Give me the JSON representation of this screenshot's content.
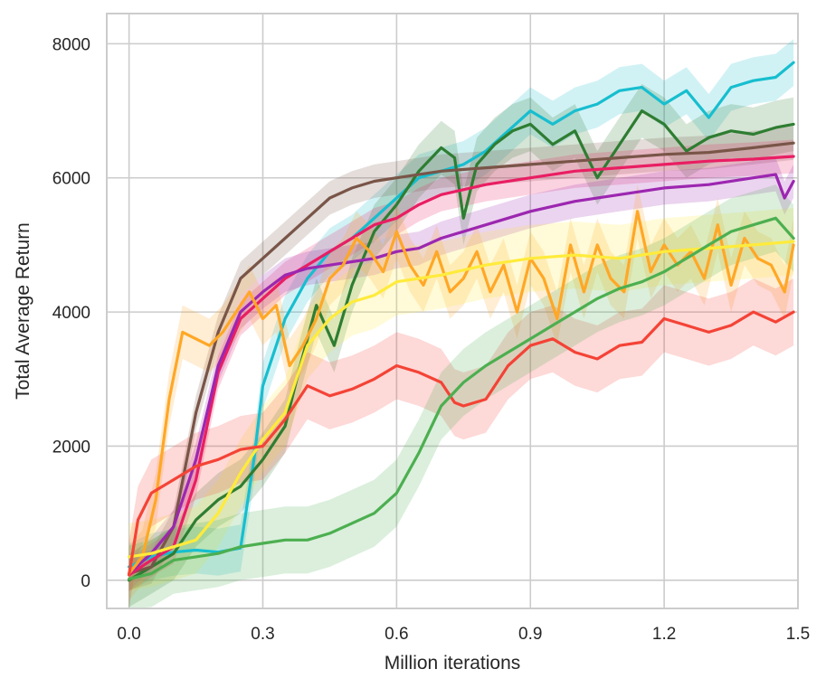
{
  "chart_data": {
    "type": "line",
    "title": "",
    "xlabel": "Million iterations",
    "ylabel": "Total Average Return",
    "xlim": [
      -0.05,
      1.5
    ],
    "ylim": [
      -420,
      8450
    ],
    "x_ticks": [
      0.0,
      0.3,
      0.6,
      0.9,
      1.2,
      1.5
    ],
    "x_tick_labels": [
      "0.0",
      "0.3",
      "0.6",
      "0.9",
      "1.2",
      "1.5"
    ],
    "y_ticks": [
      0,
      2000,
      4000,
      6000,
      8000
    ],
    "y_tick_labels": [
      "0",
      "2000",
      "4000",
      "6000",
      "8000"
    ],
    "grid": true,
    "legend": "none",
    "series": [
      {
        "name": "cyan",
        "color": "#17becf",
        "band": 350,
        "x": [
          0.0,
          0.05,
          0.1,
          0.15,
          0.2,
          0.25,
          0.28,
          0.3,
          0.35,
          0.4,
          0.45,
          0.5,
          0.55,
          0.6,
          0.65,
          0.7,
          0.75,
          0.8,
          0.85,
          0.9,
          0.95,
          1.0,
          1.05,
          1.1,
          1.15,
          1.2,
          1.25,
          1.3,
          1.35,
          1.4,
          1.45,
          1.49
        ],
        "values": [
          200,
          350,
          420,
          450,
          420,
          480,
          1800,
          2900,
          3900,
          4500,
          4900,
          5100,
          5400,
          5700,
          6000,
          6100,
          6200,
          6400,
          6700,
          7000,
          6800,
          7000,
          7100,
          7300,
          7350,
          7100,
          7300,
          6900,
          7350,
          7450,
          7500,
          7720
        ]
      },
      {
        "name": "darkgreen",
        "color": "#2e7d32",
        "band": 400,
        "x": [
          0.0,
          0.05,
          0.1,
          0.15,
          0.2,
          0.25,
          0.3,
          0.35,
          0.38,
          0.42,
          0.46,
          0.5,
          0.55,
          0.6,
          0.65,
          0.7,
          0.73,
          0.75,
          0.78,
          0.82,
          0.86,
          0.9,
          0.95,
          1.0,
          1.05,
          1.1,
          1.15,
          1.2,
          1.25,
          1.3,
          1.35,
          1.4,
          1.45,
          1.49
        ],
        "values": [
          0,
          200,
          400,
          900,
          1200,
          1400,
          1800,
          2300,
          3100,
          4100,
          3500,
          4400,
          5200,
          5600,
          6100,
          6450,
          6300,
          5400,
          6200,
          6500,
          6700,
          6800,
          6500,
          6700,
          6000,
          6500,
          7000,
          6800,
          6400,
          6600,
          6700,
          6650,
          6750,
          6800
        ]
      },
      {
        "name": "brown",
        "color": "#795548",
        "band": 250,
        "x": [
          0.0,
          0.05,
          0.1,
          0.15,
          0.2,
          0.25,
          0.3,
          0.35,
          0.4,
          0.45,
          0.5,
          0.55,
          0.6,
          0.7,
          0.8,
          0.9,
          1.0,
          1.1,
          1.2,
          1.3,
          1.4,
          1.49
        ],
        "values": [
          100,
          200,
          800,
          2500,
          3700,
          4500,
          4800,
          5100,
          5400,
          5700,
          5850,
          5950,
          6000,
          6100,
          6150,
          6200,
          6250,
          6300,
          6350,
          6380,
          6450,
          6520
        ]
      },
      {
        "name": "crimson",
        "color": "#e91e63",
        "band": 250,
        "x": [
          0.0,
          0.05,
          0.1,
          0.15,
          0.2,
          0.25,
          0.3,
          0.35,
          0.4,
          0.45,
          0.5,
          0.55,
          0.6,
          0.65,
          0.7,
          0.8,
          0.9,
          1.0,
          1.1,
          1.2,
          1.3,
          1.4,
          1.49
        ],
        "values": [
          80,
          300,
          500,
          1500,
          3100,
          3900,
          4200,
          4500,
          4700,
          4900,
          5100,
          5300,
          5400,
          5600,
          5750,
          5900,
          6000,
          6100,
          6150,
          6200,
          6250,
          6280,
          6320
        ]
      },
      {
        "name": "purple",
        "color": "#9c27b0",
        "band": 250,
        "x": [
          0.0,
          0.05,
          0.1,
          0.15,
          0.2,
          0.25,
          0.3,
          0.35,
          0.4,
          0.5,
          0.55,
          0.6,
          0.65,
          0.7,
          0.8,
          0.9,
          1.0,
          1.1,
          1.2,
          1.3,
          1.4,
          1.45,
          1.47,
          1.49
        ],
        "values": [
          100,
          400,
          800,
          1800,
          3200,
          4000,
          4300,
          4550,
          4650,
          4750,
          4800,
          4900,
          4950,
          5100,
          5300,
          5500,
          5650,
          5750,
          5850,
          5900,
          6000,
          6050,
          5700,
          5950
        ]
      },
      {
        "name": "orange",
        "color": "#ffa726",
        "band": 400,
        "x": [
          0.0,
          0.03,
          0.06,
          0.09,
          0.12,
          0.15,
          0.18,
          0.21,
          0.24,
          0.27,
          0.3,
          0.33,
          0.36,
          0.39,
          0.42,
          0.45,
          0.48,
          0.51,
          0.54,
          0.57,
          0.6,
          0.63,
          0.66,
          0.69,
          0.72,
          0.75,
          0.78,
          0.81,
          0.84,
          0.87,
          0.9,
          0.93,
          0.96,
          0.99,
          1.02,
          1.05,
          1.08,
          1.11,
          1.14,
          1.17,
          1.2,
          1.23,
          1.26,
          1.29,
          1.32,
          1.35,
          1.38,
          1.41,
          1.44,
          1.47,
          1.49
        ],
        "values": [
          100,
          350,
          1200,
          2700,
          3700,
          3600,
          3500,
          3700,
          4000,
          4300,
          3900,
          4100,
          3200,
          3500,
          3900,
          4500,
          4700,
          5100,
          4900,
          4600,
          5200,
          4700,
          4400,
          4900,
          4300,
          4500,
          4900,
          4300,
          4700,
          4000,
          4800,
          4500,
          3900,
          5000,
          4300,
          5000,
          4500,
          4300,
          5500,
          4600,
          5000,
          4700,
          4900,
          4500,
          5300,
          4400,
          5100,
          4800,
          4700,
          4300,
          5000
        ]
      },
      {
        "name": "yellow",
        "color": "#ffeb3b",
        "band": 500,
        "x": [
          0.0,
          0.05,
          0.1,
          0.15,
          0.2,
          0.25,
          0.3,
          0.35,
          0.4,
          0.45,
          0.5,
          0.55,
          0.6,
          0.65,
          0.7,
          0.8,
          0.9,
          1.0,
          1.1,
          1.2,
          1.3,
          1.4,
          1.49
        ],
        "values": [
          350,
          400,
          500,
          600,
          1000,
          1600,
          2100,
          2500,
          3500,
          3900,
          4150,
          4250,
          4450,
          4500,
          4550,
          4700,
          4800,
          4850,
          4800,
          4900,
          4950,
          5000,
          5050
        ]
      },
      {
        "name": "red",
        "color": "#f44336",
        "band": 500,
        "x": [
          0.0,
          0.02,
          0.05,
          0.1,
          0.15,
          0.2,
          0.25,
          0.3,
          0.35,
          0.4,
          0.45,
          0.5,
          0.55,
          0.6,
          0.65,
          0.7,
          0.73,
          0.75,
          0.8,
          0.85,
          0.9,
          0.95,
          1.0,
          1.05,
          1.1,
          1.15,
          1.2,
          1.25,
          1.3,
          1.35,
          1.4,
          1.45,
          1.49
        ],
        "values": [
          80,
          900,
          1300,
          1500,
          1700,
          1800,
          1950,
          2000,
          2400,
          2900,
          2750,
          2850,
          3000,
          3200,
          3100,
          2950,
          2650,
          2600,
          2700,
          3200,
          3500,
          3600,
          3400,
          3300,
          3500,
          3550,
          3900,
          3800,
          3700,
          3800,
          4000,
          3850,
          4000
        ]
      },
      {
        "name": "green",
        "color": "#4caf50",
        "band": 500,
        "x": [
          0.0,
          0.05,
          0.1,
          0.15,
          0.2,
          0.25,
          0.3,
          0.35,
          0.4,
          0.45,
          0.5,
          0.55,
          0.6,
          0.65,
          0.7,
          0.75,
          0.8,
          0.85,
          0.9,
          0.95,
          1.0,
          1.05,
          1.1,
          1.15,
          1.2,
          1.25,
          1.3,
          1.35,
          1.4,
          1.45,
          1.49
        ],
        "values": [
          20,
          100,
          300,
          350,
          400,
          500,
          550,
          600,
          600,
          700,
          850,
          1000,
          1300,
          1900,
          2600,
          2950,
          3200,
          3400,
          3600,
          3800,
          4000,
          4200,
          4350,
          4450,
          4600,
          4800,
          5000,
          5200,
          5300,
          5400,
          5100
        ]
      }
    ]
  }
}
